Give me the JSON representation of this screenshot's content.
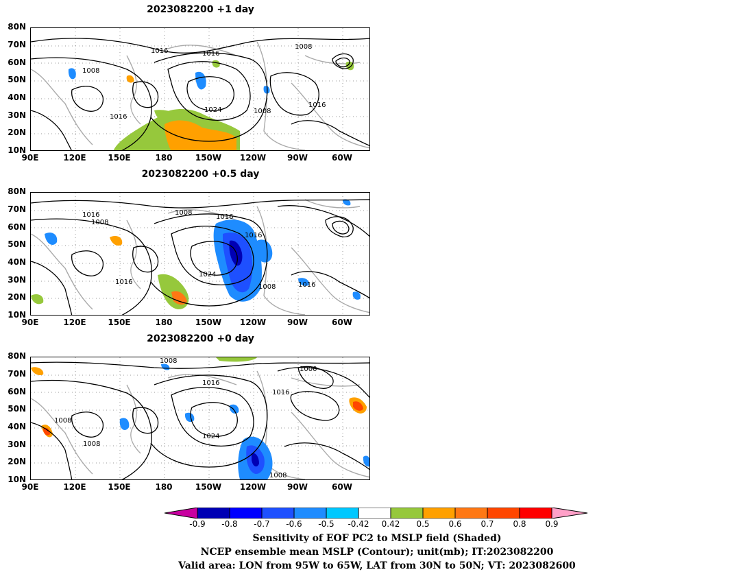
{
  "panels": [
    {
      "title": "2023082200  +1 day"
    },
    {
      "title": "2023082200  +0.5 day"
    },
    {
      "title": "2023082200  +0 day"
    }
  ],
  "axes": {
    "lat_ticks": [
      "80N",
      "70N",
      "60N",
      "50N",
      "40N",
      "30N",
      "20N",
      "10N"
    ],
    "lon_ticks": [
      "90E",
      "120E",
      "150E",
      "180",
      "150W",
      "120W",
      "90W",
      "60W"
    ]
  },
  "contour_labels": {
    "panel1": [
      "1016",
      "1016",
      "1008",
      "1008",
      "1016",
      "1024",
      "1008",
      "1016"
    ],
    "panel2": [
      "1016",
      "1008",
      "1008",
      "1016",
      "1016",
      "1024",
      "1016",
      "1008",
      "1016"
    ],
    "panel3": [
      "1008",
      "1016",
      "1000",
      "1016",
      "1008",
      "1008",
      "1024",
      "1008"
    ]
  },
  "colorbar": {
    "labels": [
      "-0.9",
      "-0.8",
      "-0.7",
      "-0.6",
      "-0.5",
      "-0.42",
      "0.42",
      "0.5",
      "0.6",
      "0.7",
      "0.8",
      "0.9"
    ],
    "colors": [
      "#0000b4",
      "#0000ff",
      "#1e50ff",
      "#1e8cff",
      "#00c8ff",
      "#ffffff",
      "#96c83c",
      "#ffa000",
      "#ff7814",
      "#ff4600",
      "#ff0000"
    ],
    "low_extend_color": "#c800a0",
    "high_extend_color": "#ffa0c8"
  },
  "captions": [
    "Sensitivity of EOF PC2 to MSLP field (Shaded)",
    "NCEP ensemble mean MSLP (Contour); unit(mb); IT:2023082200",
    "Valid area: LON from 95W to 65W, LAT from 30N to 50N; VT: 2023082600"
  ]
}
